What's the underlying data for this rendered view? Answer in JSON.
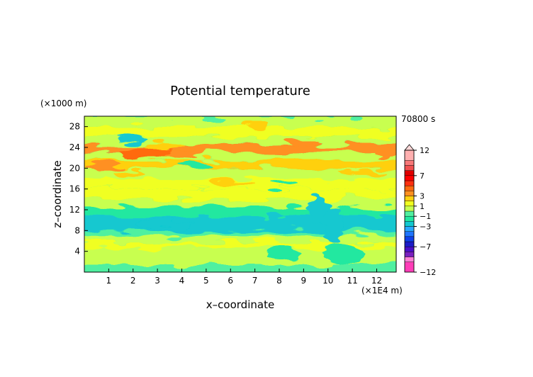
{
  "chart_data": {
    "type": "heatmap",
    "title": "Potential temperature",
    "xlabel": "x–coordinate",
    "ylabel": "z–coordinate",
    "x_unit": "(×1E4 m)",
    "y_unit": "(×1000 m)",
    "time_label": "70800 s",
    "xlim": [
      0,
      12.8
    ],
    "ylim": [
      0,
      30
    ],
    "x_ticks": [
      1,
      2,
      3,
      4,
      5,
      6,
      7,
      8,
      9,
      10,
      11,
      12
    ],
    "y_ticks": [
      4,
      8,
      12,
      16,
      20,
      24,
      28
    ],
    "colorbar": {
      "levels": [
        -12,
        -10,
        -9,
        -8,
        -7,
        -6,
        -5,
        -4,
        -3,
        -2,
        -1,
        0,
        1,
        2,
        3,
        4,
        5,
        6,
        7,
        8,
        9,
        10,
        12
      ],
      "labels": [
        "12",
        "7",
        "3",
        "1",
        "−1",
        "−3",
        "−7",
        "−12"
      ],
      "label_values": [
        12,
        7,
        3,
        1,
        -1,
        -3,
        -7,
        -12
      ],
      "colors": [
        "#ff3db8",
        "#ff7fd6",
        "#7a1fbf",
        "#4b0fc8",
        "#1c1cc8",
        "#1040e8",
        "#1f74ff",
        "#2aa8ff",
        "#12c8d0",
        "#22e8a0",
        "#50f0a0",
        "#c8ff50",
        "#f0ff20",
        "#ffd010",
        "#ff9020",
        "#ff6a10",
        "#ff3010",
        "#ff0000",
        "#e00000",
        "#f25050",
        "#f87878",
        "#ffb0b0"
      ]
    },
    "bands": [
      {
        "z": [
          0.0,
          1.5
        ],
        "value": -0.6
      },
      {
        "z": [
          1.5,
          3.0
        ],
        "value": 0.4
      },
      {
        "z": [
          3.0,
          4.5
        ],
        "value": 0.8
      },
      {
        "z": [
          4.5,
          5.6
        ],
        "value": 1.2
      },
      {
        "z": [
          5.6,
          7.0
        ],
        "value": 0.2
      },
      {
        "z": [
          7.0,
          8.0
        ],
        "value": -1.0
      },
      {
        "z": [
          8.0,
          10.8
        ],
        "value": -2.5
      },
      {
        "z": [
          10.8,
          12.5
        ],
        "value": -1.4
      },
      {
        "z": [
          12.5,
          14.0
        ],
        "value": 0.3
      },
      {
        "z": [
          14.0,
          16.0
        ],
        "value": 1.0
      },
      {
        "z": [
          16.0,
          18.0
        ],
        "value": 1.8
      },
      {
        "z": [
          18.0,
          20.0
        ],
        "value": 0.8
      },
      {
        "z": [
          20.0,
          21.5
        ],
        "value": 2.5
      },
      {
        "z": [
          21.5,
          23.0
        ],
        "value": 0.6
      },
      {
        "z": [
          23.0,
          24.5
        ],
        "value": 3.2
      },
      {
        "z": [
          24.5,
          26.0
        ],
        "value": 0.5
      },
      {
        "z": [
          26.0,
          28.0
        ],
        "value": 1.3
      },
      {
        "z": [
          28.0,
          30.0
        ],
        "value": 0.2
      }
    ],
    "features": [
      {
        "x": 2.6,
        "z": 23.1,
        "rx": 1.1,
        "rz": 1.0,
        "value": 4.0
      },
      {
        "x": 4.2,
        "z": 22.8,
        "rx": 0.8,
        "rz": 0.7,
        "value": 3.5
      },
      {
        "x": 5.0,
        "z": 24.2,
        "rx": 0.7,
        "rz": 0.6,
        "value": 3.2
      },
      {
        "x": 0.9,
        "z": 20.4,
        "rx": 0.8,
        "rz": 0.6,
        "value": 3.0
      },
      {
        "x": 2.0,
        "z": 25.5,
        "rx": 0.6,
        "rz": 0.5,
        "value": -2.5
      },
      {
        "x": 4.6,
        "z": 20.6,
        "rx": 0.7,
        "rz": 0.6,
        "value": -2.0
      },
      {
        "x": 6.0,
        "z": 17.4,
        "rx": 0.9,
        "rz": 0.5,
        "value": 2.2
      },
      {
        "x": 1.8,
        "z": 19.0,
        "rx": 0.6,
        "rz": 0.5,
        "value": 2.5
      },
      {
        "x": 8.2,
        "z": 17.0,
        "rx": 0.6,
        "rz": 0.5,
        "value": -1.8
      },
      {
        "x": 10.0,
        "z": 20.8,
        "rx": 1.3,
        "rz": 0.5,
        "value": 2.5
      },
      {
        "x": 11.5,
        "z": 19.2,
        "rx": 1.0,
        "rz": 0.5,
        "value": 2.2
      },
      {
        "x": 8.9,
        "z": 24.8,
        "rx": 0.6,
        "rz": 0.6,
        "value": 3.0
      },
      {
        "x": 12.4,
        "z": 22.8,
        "rx": 0.4,
        "rz": 0.8,
        "value": 3.0
      },
      {
        "x": 3.3,
        "z": 24.3,
        "rx": 0.8,
        "rz": 0.5,
        "value": 2.6
      },
      {
        "x": 7.0,
        "z": 28.2,
        "rx": 0.5,
        "rz": 0.6,
        "value": 2.0
      },
      {
        "x": 9.6,
        "z": 12.0,
        "rx": 0.4,
        "rz": 2.6,
        "value": -2.5
      },
      {
        "x": 10.2,
        "z": 9.0,
        "rx": 0.4,
        "rz": 3.5,
        "value": -2.8
      },
      {
        "x": 10.6,
        "z": 3.5,
        "rx": 0.8,
        "rz": 2.0,
        "value": -1.8
      },
      {
        "x": 8.2,
        "z": 3.5,
        "rx": 0.7,
        "rz": 1.0,
        "value": -1.4
      },
      {
        "x": 3.3,
        "z": 9.3,
        "rx": 1.4,
        "rz": 0.9,
        "value": -3.0
      },
      {
        "x": 7.5,
        "z": 6.0,
        "rx": 0.5,
        "rz": 0.5,
        "value": 1.8
      }
    ]
  }
}
